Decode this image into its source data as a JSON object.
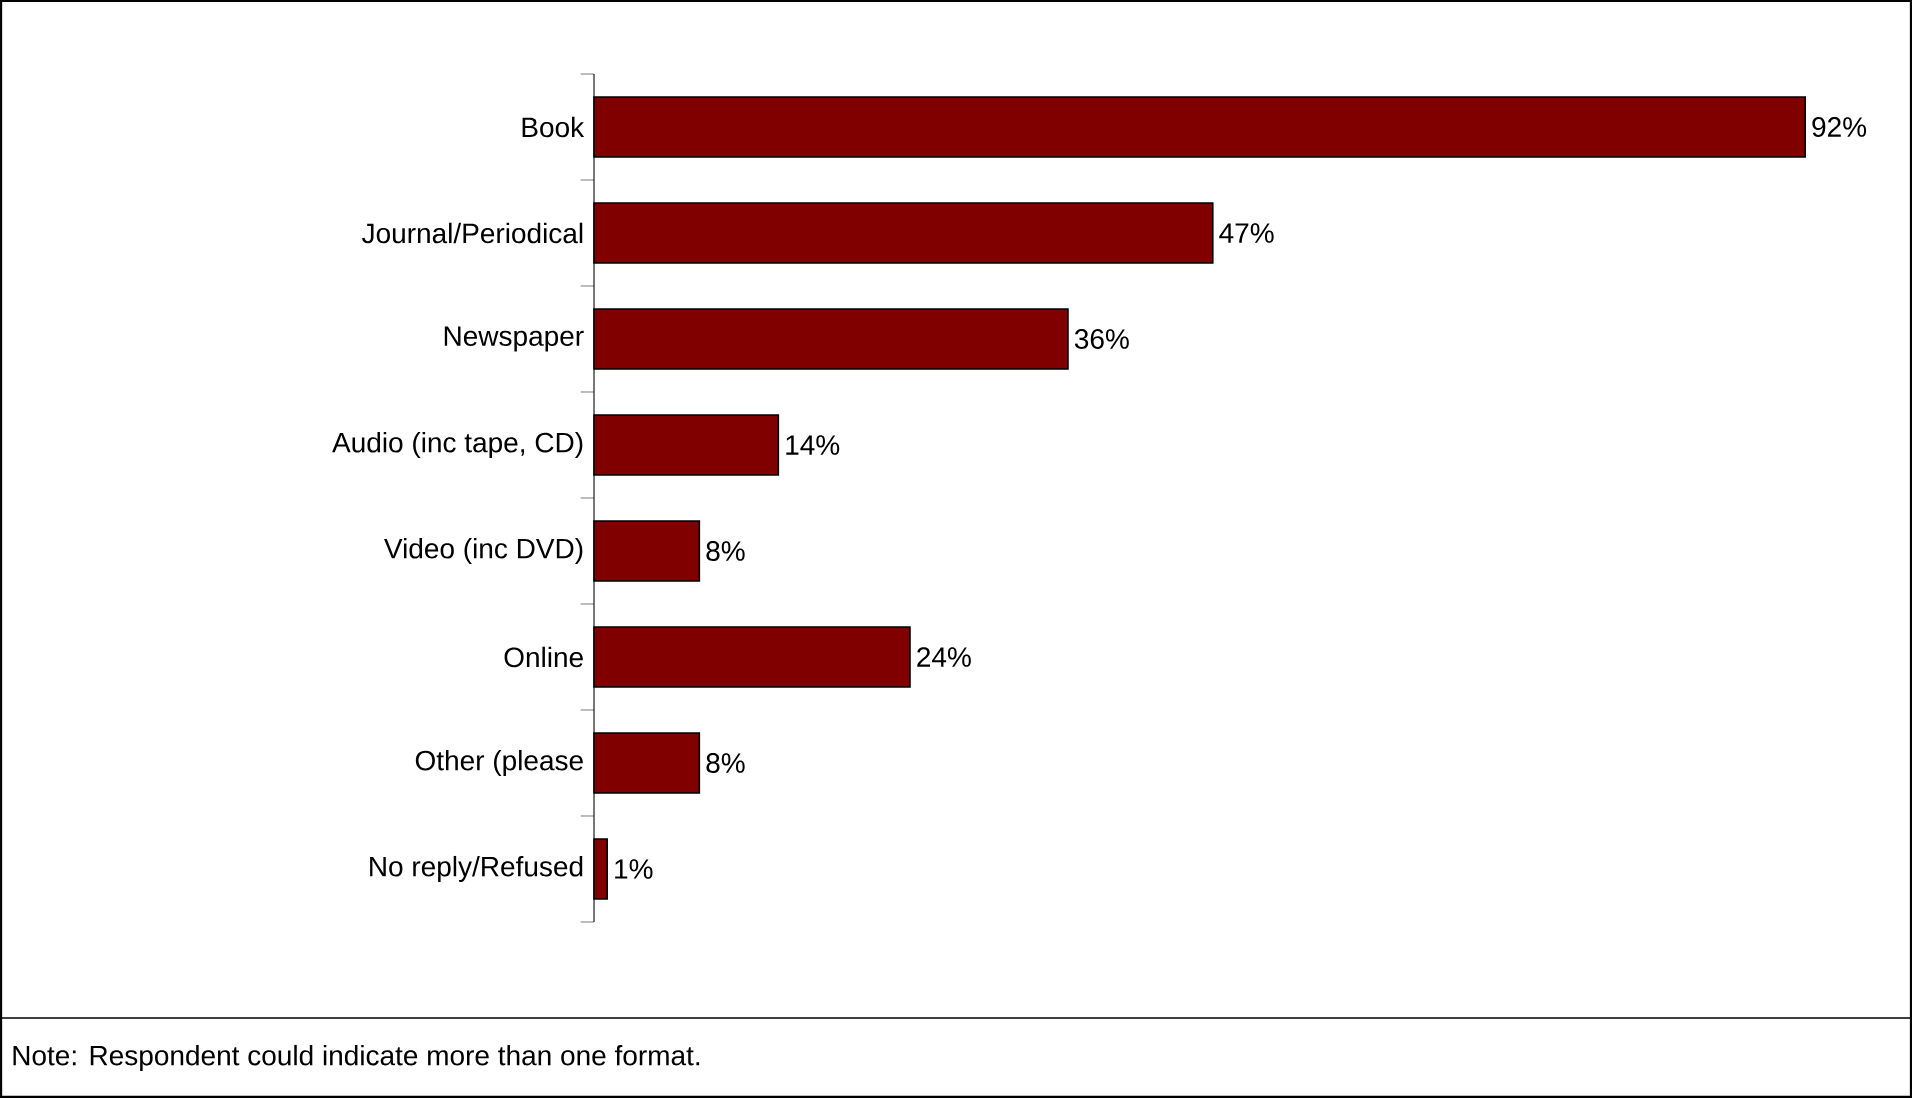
{
  "chart_data": {
    "type": "bar",
    "orientation": "horizontal",
    "categories": [
      "Book",
      "Journal/Periodical",
      "Newspaper",
      "Audio (inc tape, CD)",
      "Video (inc DVD)",
      "Online",
      "Other (please",
      "No reply/Refused"
    ],
    "values": [
      92,
      47,
      36,
      14,
      8,
      24,
      8,
      1
    ],
    "value_labels": [
      "92%",
      "47%",
      "36%",
      "14%",
      "8%",
      "24%",
      "8%",
      "1%"
    ],
    "color": "#800000",
    "annotations": [
      "Note: Respondent could indicate more than one format."
    ]
  }
}
